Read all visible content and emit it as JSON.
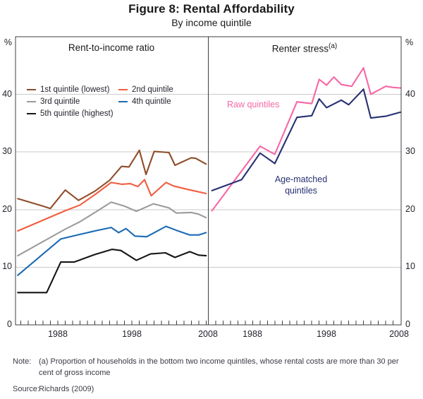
{
  "figure": {
    "title": "Figure 8: Rental Affordability",
    "subtitle": "By income quintile"
  },
  "panels": {
    "left": {
      "title": "Rent-to-income ratio"
    },
    "right": {
      "title": "Renter stress",
      "title_sup": "(a)",
      "annotations": {
        "raw": "Raw quintiles",
        "age_line1": "Age-matched",
        "age_line2": "quintiles"
      }
    }
  },
  "axes": {
    "y_unit_left": "%",
    "y_unit_right": "%",
    "y_ticks": [
      "40",
      "30",
      "20",
      "10",
      "0"
    ],
    "x_ticks_left": [
      "1988",
      "1998",
      "2008"
    ],
    "x_ticks_right": [
      "1988",
      "1998",
      "2008"
    ]
  },
  "note": {
    "label": "Note:",
    "text": "(a) Proportion of households in the bottom two income quintiles, whose rental costs are more than 30 per cent of gross income"
  },
  "source": {
    "label": "Source:",
    "text": "Richards (2009)"
  },
  "colors": {
    "grid": "#c9c9c9",
    "axis": "#3f3f3f"
  },
  "chart_data": [
    {
      "type": "line",
      "panel": "left",
      "title": "Rent-to-income ratio",
      "xlabel": "",
      "ylabel": "%",
      "ylim": [
        0,
        50
      ],
      "xlim": [
        1982.3,
        2008.3
      ],
      "x_tick_labels": [
        1988,
        1998,
        2008
      ],
      "y_tick_labels": [
        0,
        10,
        20,
        30,
        40
      ],
      "grid": "horizontal",
      "legend_position": "upper-left-inside",
      "series": [
        {
          "name": "1st quintile (lowest)",
          "color": "#8f4d2a",
          "points": [
            [
              1982.6,
              21.9
            ],
            [
              1986,
              20.6
            ],
            [
              1987,
              20.2
            ],
            [
              1989,
              23.4
            ],
            [
              1990.8,
              21.6
            ],
            [
              1993,
              23.2
            ],
            [
              1995,
              25.1
            ],
            [
              1996.6,
              27.5
            ],
            [
              1997.6,
              27.4
            ],
            [
              1999,
              30.3
            ],
            [
              1999.9,
              26.1
            ],
            [
              2001,
              30.1
            ],
            [
              2003,
              29.9
            ],
            [
              2003.8,
              27.7
            ],
            [
              2006,
              29.0
            ],
            [
              2006.6,
              28.9
            ],
            [
              2008,
              27.9
            ]
          ]
        },
        {
          "name": "2nd quintile",
          "color": "#f15d40",
          "points": [
            [
              1982.6,
              16.3
            ],
            [
              1989,
              19.8
            ],
            [
              1991,
              20.8
            ],
            [
              1993,
              22.6
            ],
            [
              1995.2,
              24.7
            ],
            [
              1996.6,
              24.4
            ],
            [
              1997.8,
              24.5
            ],
            [
              1998.8,
              24.0
            ],
            [
              1999.7,
              25.2
            ],
            [
              2000.6,
              22.4
            ],
            [
              2002.6,
              24.7
            ],
            [
              2003.6,
              24.1
            ],
            [
              2005.5,
              23.5
            ],
            [
              2008,
              22.8
            ]
          ]
        },
        {
          "name": "3rd quintile",
          "color": "#9b9b9b",
          "points": [
            [
              1982.6,
              12.0
            ],
            [
              1989,
              16.6
            ],
            [
              1991,
              17.9
            ],
            [
              1993,
              19.5
            ],
            [
              1995.2,
              21.3
            ],
            [
              1997,
              20.6
            ],
            [
              1998.6,
              19.7
            ],
            [
              2000.9,
              21.0
            ],
            [
              2003,
              20.3
            ],
            [
              2004,
              19.4
            ],
            [
              2006,
              19.5
            ],
            [
              2007,
              19.2
            ],
            [
              2008,
              18.6
            ]
          ]
        },
        {
          "name": "4th quintile",
          "color": "#1b6ab5",
          "points": [
            [
              1982.6,
              8.6
            ],
            [
              1988.4,
              14.9
            ],
            [
              1991,
              15.7
            ],
            [
              1993,
              16.3
            ],
            [
              1995.2,
              16.9
            ],
            [
              1996.2,
              16.0
            ],
            [
              1997.2,
              16.7
            ],
            [
              1998.4,
              15.4
            ],
            [
              2000,
              15.3
            ],
            [
              2002.6,
              17.1
            ],
            [
              2004,
              16.4
            ],
            [
              2005.8,
              15.6
            ],
            [
              2007,
              15.6
            ],
            [
              2008,
              16.0
            ]
          ]
        },
        {
          "name": "5th quintile (highest)",
          "color": "#161616",
          "points": [
            [
              1982.6,
              5.6
            ],
            [
              1986.5,
              5.6
            ],
            [
              1988.4,
              10.9
            ],
            [
              1990.2,
              10.9
            ],
            [
              1993,
              12.2
            ],
            [
              1995.3,
              13.1
            ],
            [
              1996.5,
              12.9
            ],
            [
              1998.6,
              11.2
            ],
            [
              2000.5,
              12.3
            ],
            [
              2002.5,
              12.5
            ],
            [
              2003.8,
              11.7
            ],
            [
              2005.8,
              12.7
            ],
            [
              2007,
              12.1
            ],
            [
              2008,
              12.0
            ]
          ]
        }
      ]
    },
    {
      "type": "line",
      "panel": "right",
      "title": "Renter stress (a)",
      "xlabel": "",
      "ylabel": "%",
      "ylim": [
        0,
        50
      ],
      "xlim": [
        1982.0,
        2008.1
      ],
      "x_tick_labels": [
        1988,
        1998,
        2008
      ],
      "y_tick_labels": [
        0,
        10,
        20,
        30,
        40
      ],
      "grid": "horizontal",
      "legend_position": "inline-labels",
      "series": [
        {
          "name": "Raw quintiles",
          "color": "#f767a4",
          "points": [
            [
              1982.5,
              19.8
            ],
            [
              1989,
              31.0
            ],
            [
              1991,
              29.6
            ],
            [
              1994,
              38.7
            ],
            [
              1996,
              38.4
            ],
            [
              1997,
              42.6
            ],
            [
              1998,
              41.6
            ],
            [
              1999,
              43.0
            ],
            [
              2000,
              41.7
            ],
            [
              2001.4,
              41.4
            ],
            [
              2003,
              44.6
            ],
            [
              2004,
              40.0
            ],
            [
              2006,
              41.4
            ],
            [
              2007,
              41.2
            ],
            [
              2008,
              41.1
            ]
          ]
        },
        {
          "name": "Age-matched quintiles",
          "color": "#273173",
          "points": [
            [
              1982.5,
              23.3
            ],
            [
              1986.5,
              25.2
            ],
            [
              1989,
              29.8
            ],
            [
              1991,
              28.0
            ],
            [
              1994,
              36.0
            ],
            [
              1996,
              36.3
            ],
            [
              1997,
              39.2
            ],
            [
              1998,
              37.7
            ],
            [
              2000,
              39.0
            ],
            [
              2001,
              38.2
            ],
            [
              2003,
              40.9
            ],
            [
              2004,
              35.9
            ],
            [
              2006,
              36.2
            ],
            [
              2008,
              36.9
            ]
          ]
        }
      ]
    }
  ]
}
